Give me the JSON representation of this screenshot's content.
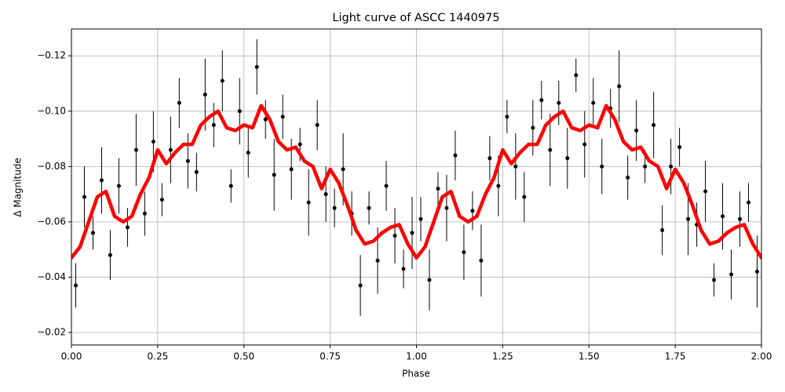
{
  "chart_data": {
    "type": "scatter",
    "title": "Light curve of ASCC 1440975",
    "x_label": "Phase",
    "y_label": "Δ Magnitude",
    "xlim": [
      0,
      2
    ],
    "ylim": [
      -0.0155,
      -0.1297
    ],
    "grid": true,
    "xticks": [
      {
        "value": 0,
        "label": "0.00"
      },
      {
        "value": 0.25,
        "label": "0.25"
      },
      {
        "value": 0.5,
        "label": "0.50"
      },
      {
        "value": 0.75,
        "label": "0.75"
      },
      {
        "value": 1,
        "label": "1.00"
      },
      {
        "value": 1.25,
        "label": "1.25"
      },
      {
        "value": 1.5,
        "label": "1.50"
      },
      {
        "value": 1.75,
        "label": "1.75"
      },
      {
        "value": 2,
        "label": "2.00"
      }
    ],
    "yticks": [
      {
        "value": -0.02,
        "label": "−0.02"
      },
      {
        "value": -0.04,
        "label": "−0.04"
      },
      {
        "value": -0.06,
        "label": "−0.06"
      },
      {
        "value": -0.08,
        "label": "−0.08"
      },
      {
        "value": -0.1,
        "label": "−0.10"
      },
      {
        "value": -0.12,
        "label": "−0.12"
      }
    ],
    "points": {
      "color": "#000000",
      "x": [
        0.0125,
        0.0375,
        0.0625,
        0.0875,
        0.1125,
        0.1375,
        0.1625,
        0.1875,
        0.2125,
        0.2375,
        0.2625,
        0.2875,
        0.3125,
        0.3375,
        0.3625,
        0.3875,
        0.4125,
        0.4375,
        0.4625,
        0.4875,
        0.5125,
        0.5375,
        0.5625,
        0.5875,
        0.6125,
        0.6375,
        0.6625,
        0.6875,
        0.7125,
        0.7375,
        0.7625,
        0.7875,
        0.8125,
        0.8375,
        0.8625,
        0.8875,
        0.9125,
        0.9375,
        0.9625,
        0.9875,
        1.0125,
        1.0375,
        1.0625,
        1.0875,
        1.1125,
        1.1375,
        1.1625,
        1.1875,
        1.2125,
        1.2375,
        1.2625,
        1.2875,
        1.3125,
        1.3375,
        1.3625,
        1.3875,
        1.4125,
        1.4375,
        1.4625,
        1.4875,
        1.5125,
        1.5375,
        1.5625,
        1.5875,
        1.6125,
        1.6375,
        1.6625,
        1.6875,
        1.7125,
        1.7375,
        1.7625,
        1.7875,
        1.8125,
        1.8375,
        1.8625,
        1.8875,
        1.9125,
        1.9375,
        1.9625,
        1.9875
      ],
      "values": [
        -0.037,
        -0.069,
        -0.056,
        -0.075,
        -0.048,
        -0.073,
        -0.058,
        -0.086,
        -0.063,
        -0.089,
        -0.068,
        -0.086,
        -0.103,
        -0.082,
        -0.078,
        -0.106,
        -0.095,
        -0.111,
        -0.073,
        -0.1,
        -0.085,
        -0.116,
        -0.097,
        -0.077,
        -0.098,
        -0.079,
        -0.088,
        -0.067,
        -0.095,
        -0.07,
        -0.065,
        -0.079,
        -0.063,
        -0.037,
        -0.065,
        -0.046,
        -0.073,
        -0.055,
        -0.043,
        -0.056,
        -0.061,
        -0.039,
        -0.072,
        -0.065,
        -0.084,
        -0.049,
        -0.064,
        -0.046,
        -0.083,
        -0.073,
        -0.098,
        -0.08,
        -0.069,
        -0.094,
        -0.104,
        -0.086,
        -0.103,
        -0.083,
        -0.113,
        -0.088,
        -0.103,
        -0.08,
        -0.101,
        -0.109,
        -0.076,
        -0.093,
        -0.08,
        -0.095,
        -0.057,
        -0.08,
        -0.087,
        -0.061,
        -0.059,
        -0.071,
        -0.039,
        -0.062,
        -0.041,
        -0.061,
        -0.067,
        -0.042
      ],
      "errors": [
        0.008,
        0.011,
        0.006,
        0.012,
        0.009,
        0.01,
        0.007,
        0.013,
        0.008,
        0.011,
        0.006,
        0.012,
        0.009,
        0.01,
        0.007,
        0.013,
        0.008,
        0.011,
        0.006,
        0.012,
        0.009,
        0.01,
        0.007,
        0.013,
        0.008,
        0.011,
        0.006,
        0.012,
        0.009,
        0.01,
        0.007,
        0.013,
        0.008,
        0.011,
        0.006,
        0.012,
        0.009,
        0.01,
        0.007,
        0.013,
        0.008,
        0.011,
        0.006,
        0.012,
        0.009,
        0.01,
        0.007,
        0.013,
        0.008,
        0.011,
        0.006,
        0.012,
        0.009,
        0.01,
        0.007,
        0.013,
        0.008,
        0.011,
        0.006,
        0.012,
        0.009,
        0.01,
        0.007,
        0.013,
        0.008,
        0.011,
        0.006,
        0.012,
        0.009,
        0.01,
        0.007,
        0.013,
        0.008,
        0.011,
        0.006,
        0.012,
        0.009,
        0.01,
        0.007,
        0.013
      ]
    },
    "curve": {
      "color": "#ff0000",
      "x": [
        0,
        0.025,
        0.05,
        0.075,
        0.1,
        0.125,
        0.15,
        0.175,
        0.2,
        0.225,
        0.25,
        0.275,
        0.3,
        0.325,
        0.35,
        0.375,
        0.4,
        0.425,
        0.45,
        0.475,
        0.5,
        0.525,
        0.55,
        0.575,
        0.6,
        0.625,
        0.65,
        0.675,
        0.7,
        0.725,
        0.75,
        0.775,
        0.8,
        0.825,
        0.85,
        0.875,
        0.9,
        0.925,
        0.95,
        0.975,
        1,
        1.025,
        1.05,
        1.075,
        1.1,
        1.125,
        1.15,
        1.175,
        1.2,
        1.225,
        1.25,
        1.275,
        1.3,
        1.325,
        1.35,
        1.375,
        1.4,
        1.425,
        1.45,
        1.475,
        1.5,
        1.525,
        1.55,
        1.575,
        1.6,
        1.625,
        1.65,
        1.675,
        1.7,
        1.725,
        1.75,
        1.775,
        1.8,
        1.825,
        1.85,
        1.875,
        1.9,
        1.925,
        1.95,
        1.975,
        2
      ],
      "values": [
        -0.047,
        -0.051,
        -0.06,
        -0.069,
        -0.071,
        -0.062,
        -0.06,
        -0.062,
        -0.07,
        -0.076,
        -0.086,
        -0.081,
        -0.085,
        -0.088,
        -0.088,
        -0.095,
        -0.098,
        -0.1,
        -0.094,
        -0.093,
        -0.095,
        -0.094,
        -0.102,
        -0.097,
        -0.089,
        -0.086,
        -0.087,
        -0.082,
        -0.08,
        -0.072,
        -0.079,
        -0.074,
        -0.066,
        -0.057,
        -0.052,
        -0.053,
        -0.056,
        -0.058,
        -0.059,
        -0.052,
        -0.047,
        -0.051,
        -0.06,
        -0.069,
        -0.071,
        -0.062,
        -0.06,
        -0.062,
        -0.07,
        -0.076,
        -0.086,
        -0.081,
        -0.085,
        -0.088,
        -0.088,
        -0.095,
        -0.098,
        -0.1,
        -0.094,
        -0.093,
        -0.095,
        -0.094,
        -0.102,
        -0.097,
        -0.089,
        -0.086,
        -0.087,
        -0.082,
        -0.08,
        -0.072,
        -0.079,
        -0.074,
        -0.066,
        -0.057,
        -0.052,
        -0.053,
        -0.056,
        -0.058,
        -0.059,
        -0.052,
        -0.047
      ]
    }
  }
}
